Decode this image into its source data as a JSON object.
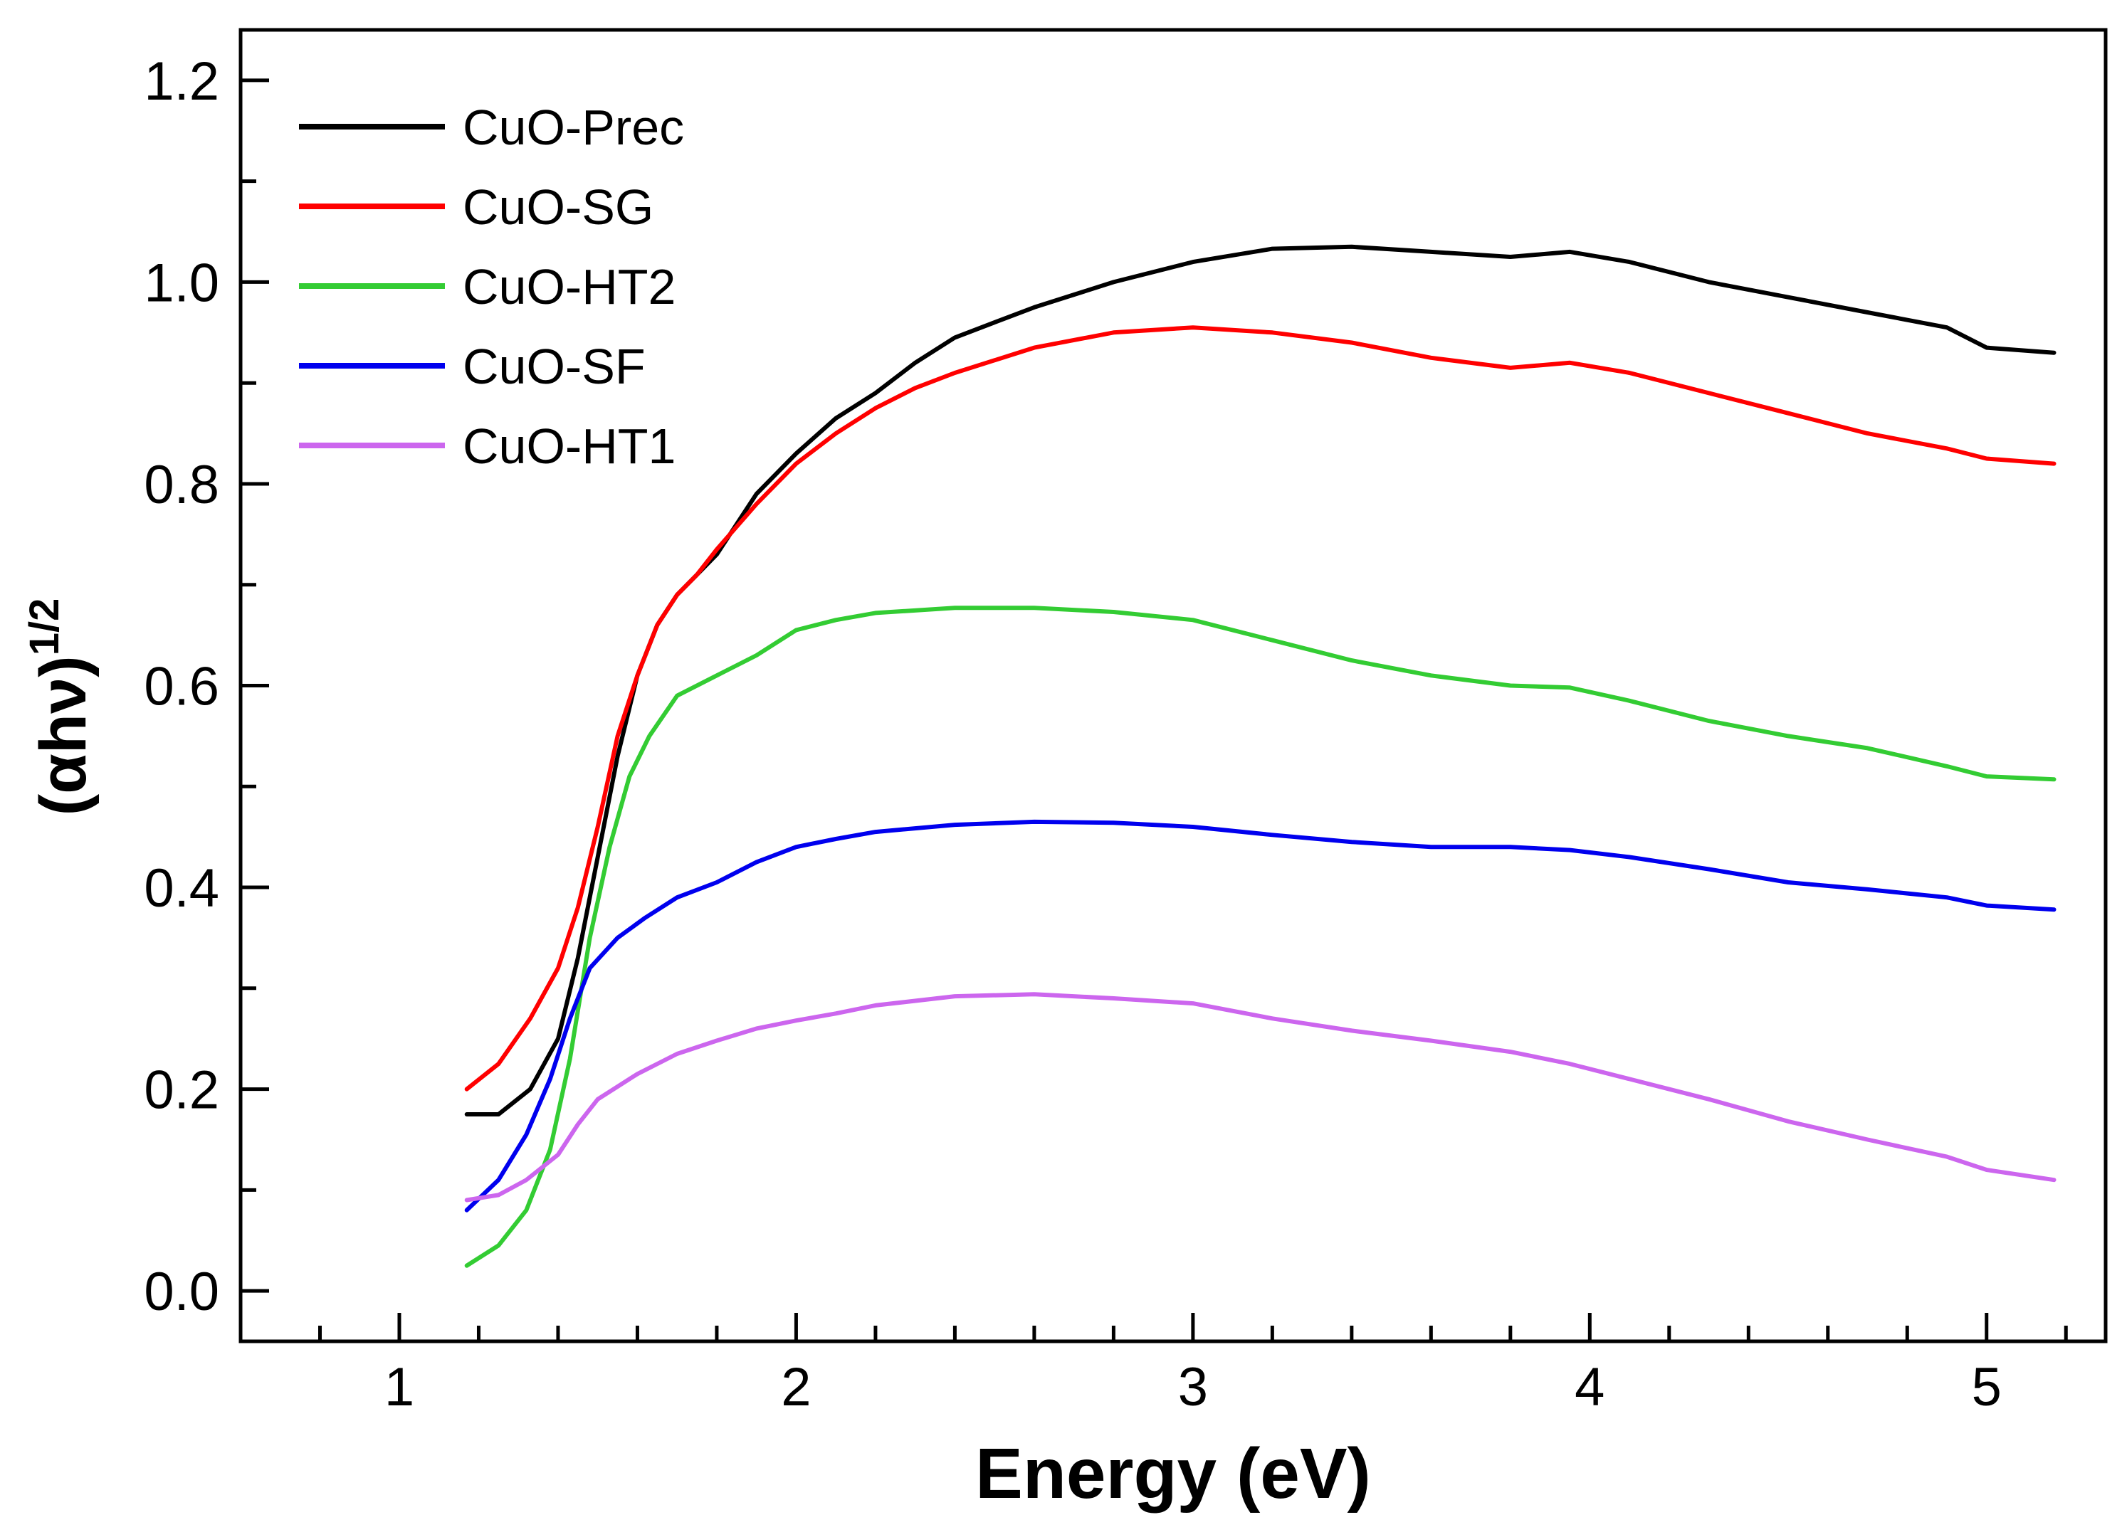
{
  "chart_data": {
    "type": "line",
    "title": "",
    "xlabel": "Energy (eV)",
    "ylabel_base": "(αhν)",
    "ylabel_exponent": "1/2",
    "xlim": [
      0.6,
      5.3
    ],
    "ylim": [
      -0.05,
      1.25
    ],
    "x_ticks": [
      {
        "value": 1,
        "label": "1"
      },
      {
        "value": 2,
        "label": "2"
      },
      {
        "value": 3,
        "label": "3"
      },
      {
        "value": 4,
        "label": "4"
      },
      {
        "value": 5,
        "label": "5"
      }
    ],
    "x_minor_ticks": [
      0.8,
      1.2,
      1.4,
      1.6,
      1.8,
      2.2,
      2.4,
      2.6,
      2.8,
      3.2,
      3.4,
      3.6,
      3.8,
      4.2,
      4.4,
      4.6,
      4.8,
      5.2
    ],
    "y_ticks": [
      {
        "value": 0.0,
        "label": "0.0"
      },
      {
        "value": 0.2,
        "label": "0.2"
      },
      {
        "value": 0.4,
        "label": "0.4"
      },
      {
        "value": 0.6,
        "label": "0.6"
      },
      {
        "value": 0.8,
        "label": "0.8"
      },
      {
        "value": 1.0,
        "label": "1.0"
      },
      {
        "value": 1.2,
        "label": "1.2"
      }
    ],
    "y_minor_ticks": [
      0.1,
      0.3,
      0.5,
      0.7,
      0.9,
      1.1
    ],
    "grid": false,
    "legend_position": "top-left",
    "series": [
      {
        "name": "CuO-Prec",
        "color": "#000000",
        "points": [
          [
            1.17,
            0.175
          ],
          [
            1.25,
            0.175
          ],
          [
            1.33,
            0.2
          ],
          [
            1.4,
            0.25
          ],
          [
            1.45,
            0.33
          ],
          [
            1.5,
            0.43
          ],
          [
            1.55,
            0.53
          ],
          [
            1.6,
            0.61
          ],
          [
            1.65,
            0.66
          ],
          [
            1.7,
            0.69
          ],
          [
            1.75,
            0.71
          ],
          [
            1.8,
            0.73
          ],
          [
            1.9,
            0.79
          ],
          [
            2.0,
            0.83
          ],
          [
            2.1,
            0.865
          ],
          [
            2.2,
            0.89
          ],
          [
            2.3,
            0.92
          ],
          [
            2.4,
            0.945
          ],
          [
            2.5,
            0.96
          ],
          [
            2.6,
            0.975
          ],
          [
            2.8,
            1.0
          ],
          [
            3.0,
            1.02
          ],
          [
            3.2,
            1.033
          ],
          [
            3.4,
            1.035
          ],
          [
            3.6,
            1.03
          ],
          [
            3.8,
            1.025
          ],
          [
            3.95,
            1.03
          ],
          [
            4.1,
            1.02
          ],
          [
            4.3,
            1.0
          ],
          [
            4.5,
            0.985
          ],
          [
            4.7,
            0.97
          ],
          [
            4.9,
            0.955
          ],
          [
            5.0,
            0.935
          ],
          [
            5.17,
            0.93
          ]
        ]
      },
      {
        "name": "CuO-SG",
        "color": "#ff0000",
        "points": [
          [
            1.17,
            0.2
          ],
          [
            1.25,
            0.225
          ],
          [
            1.33,
            0.27
          ],
          [
            1.4,
            0.32
          ],
          [
            1.45,
            0.38
          ],
          [
            1.5,
            0.46
          ],
          [
            1.55,
            0.55
          ],
          [
            1.6,
            0.61
          ],
          [
            1.65,
            0.66
          ],
          [
            1.7,
            0.69
          ],
          [
            1.75,
            0.71
          ],
          [
            1.8,
            0.735
          ],
          [
            1.9,
            0.78
          ],
          [
            2.0,
            0.82
          ],
          [
            2.1,
            0.85
          ],
          [
            2.2,
            0.875
          ],
          [
            2.3,
            0.895
          ],
          [
            2.4,
            0.91
          ],
          [
            2.6,
            0.935
          ],
          [
            2.8,
            0.95
          ],
          [
            3.0,
            0.955
          ],
          [
            3.2,
            0.95
          ],
          [
            3.4,
            0.94
          ],
          [
            3.6,
            0.925
          ],
          [
            3.8,
            0.915
          ],
          [
            3.95,
            0.92
          ],
          [
            4.1,
            0.91
          ],
          [
            4.3,
            0.89
          ],
          [
            4.5,
            0.87
          ],
          [
            4.7,
            0.85
          ],
          [
            4.9,
            0.835
          ],
          [
            5.0,
            0.825
          ],
          [
            5.17,
            0.82
          ]
        ]
      },
      {
        "name": "CuO-HT2",
        "color": "#33cc33",
        "points": [
          [
            1.17,
            0.025
          ],
          [
            1.25,
            0.045
          ],
          [
            1.32,
            0.08
          ],
          [
            1.38,
            0.14
          ],
          [
            1.43,
            0.23
          ],
          [
            1.48,
            0.35
          ],
          [
            1.53,
            0.44
          ],
          [
            1.58,
            0.51
          ],
          [
            1.63,
            0.55
          ],
          [
            1.7,
            0.59
          ],
          [
            1.8,
            0.61
          ],
          [
            1.9,
            0.63
          ],
          [
            2.0,
            0.655
          ],
          [
            2.1,
            0.665
          ],
          [
            2.2,
            0.672
          ],
          [
            2.4,
            0.677
          ],
          [
            2.6,
            0.677
          ],
          [
            2.8,
            0.673
          ],
          [
            3.0,
            0.665
          ],
          [
            3.2,
            0.645
          ],
          [
            3.4,
            0.625
          ],
          [
            3.6,
            0.61
          ],
          [
            3.8,
            0.6
          ],
          [
            3.95,
            0.598
          ],
          [
            4.1,
            0.585
          ],
          [
            4.3,
            0.565
          ],
          [
            4.5,
            0.55
          ],
          [
            4.7,
            0.538
          ],
          [
            4.9,
            0.52
          ],
          [
            5.0,
            0.51
          ],
          [
            5.17,
            0.507
          ]
        ]
      },
      {
        "name": "CuO-SF",
        "color": "#0000ee",
        "points": [
          [
            1.17,
            0.08
          ],
          [
            1.25,
            0.11
          ],
          [
            1.32,
            0.155
          ],
          [
            1.38,
            0.21
          ],
          [
            1.43,
            0.27
          ],
          [
            1.48,
            0.32
          ],
          [
            1.55,
            0.35
          ],
          [
            1.62,
            0.37
          ],
          [
            1.7,
            0.39
          ],
          [
            1.8,
            0.405
          ],
          [
            1.9,
            0.425
          ],
          [
            2.0,
            0.44
          ],
          [
            2.1,
            0.448
          ],
          [
            2.2,
            0.455
          ],
          [
            2.4,
            0.462
          ],
          [
            2.6,
            0.465
          ],
          [
            2.8,
            0.464
          ],
          [
            3.0,
            0.46
          ],
          [
            3.2,
            0.452
          ],
          [
            3.4,
            0.445
          ],
          [
            3.6,
            0.44
          ],
          [
            3.8,
            0.44
          ],
          [
            3.95,
            0.437
          ],
          [
            4.1,
            0.43
          ],
          [
            4.3,
            0.418
          ],
          [
            4.5,
            0.405
          ],
          [
            4.7,
            0.398
          ],
          [
            4.9,
            0.39
          ],
          [
            5.0,
            0.382
          ],
          [
            5.17,
            0.378
          ]
        ]
      },
      {
        "name": "CuO-HT1",
        "color": "#cc66ee",
        "points": [
          [
            1.17,
            0.09
          ],
          [
            1.25,
            0.095
          ],
          [
            1.32,
            0.11
          ],
          [
            1.4,
            0.135
          ],
          [
            1.45,
            0.165
          ],
          [
            1.5,
            0.19
          ],
          [
            1.6,
            0.215
          ],
          [
            1.7,
            0.235
          ],
          [
            1.8,
            0.248
          ],
          [
            1.9,
            0.26
          ],
          [
            2.0,
            0.268
          ],
          [
            2.1,
            0.275
          ],
          [
            2.2,
            0.283
          ],
          [
            2.4,
            0.292
          ],
          [
            2.6,
            0.294
          ],
          [
            2.8,
            0.29
          ],
          [
            3.0,
            0.285
          ],
          [
            3.2,
            0.27
          ],
          [
            3.4,
            0.258
          ],
          [
            3.6,
            0.248
          ],
          [
            3.8,
            0.237
          ],
          [
            3.95,
            0.225
          ],
          [
            4.1,
            0.21
          ],
          [
            4.3,
            0.19
          ],
          [
            4.5,
            0.168
          ],
          [
            4.7,
            0.15
          ],
          [
            4.9,
            0.133
          ],
          [
            5.0,
            0.12
          ],
          [
            5.17,
            0.11
          ]
        ]
      }
    ]
  }
}
